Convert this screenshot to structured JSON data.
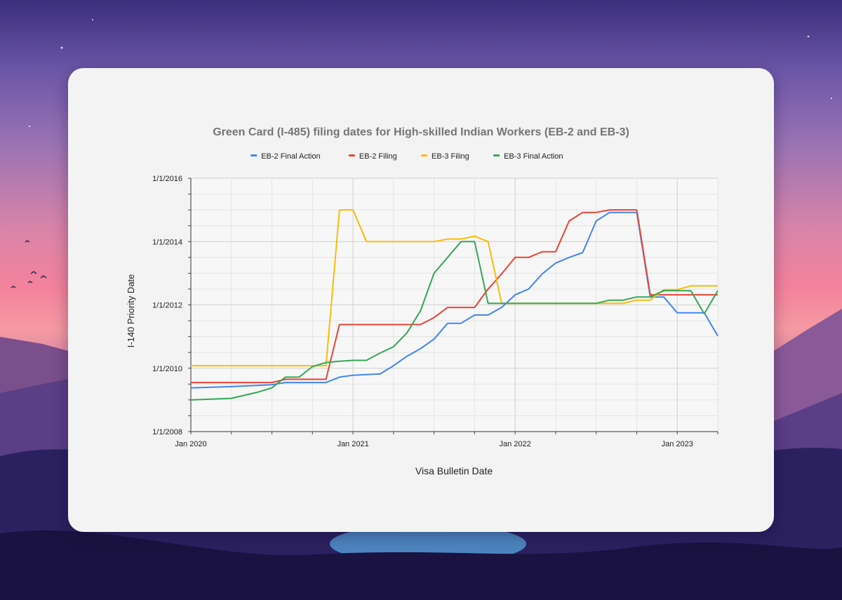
{
  "colors": {
    "eb2_final": "#4285f4",
    "eb2_filing": "#ea4335",
    "eb3_filing": "#fbbc04",
    "eb3_final": "#34a853",
    "card_bg": "#f3f3f3",
    "title_color": "#757575",
    "grid": "#dadada"
  },
  "chart_data": {
    "type": "line",
    "title": "Green Card (I-485) filing dates for High-skilled Indian Workers (EB-2 and EB-3)",
    "xlabel": "Visa Bulletin Date",
    "ylabel": "I-140 Priority Date",
    "x_ticks": [
      "Jan 2020",
      "Jan 2021",
      "Jan 2022",
      "Jan 2023"
    ],
    "y_ticks": [
      "1/1/2008",
      "1/1/2010",
      "1/1/2012",
      "1/1/2014",
      "1/1/2016"
    ],
    "x_range": [
      "2020-01",
      "2023-04"
    ],
    "y_range": [
      2008,
      2016
    ],
    "grid": true,
    "legend_position": "top",
    "series": [
      {
        "name": "EB-2 Final Action",
        "color": "#4285f4",
        "points": [
          [
            "2020-01",
            2009.38
          ],
          [
            "2020-04",
            2009.42
          ],
          [
            "2020-07",
            2009.48
          ],
          [
            "2020-08",
            2009.55
          ],
          [
            "2020-10",
            2009.55
          ],
          [
            "2020-11",
            2009.55
          ],
          [
            "2020-12",
            2009.72
          ],
          [
            "2021-01",
            2009.78
          ],
          [
            "2021-02",
            2009.8
          ],
          [
            "2021-03",
            2009.82
          ],
          [
            "2021-04",
            2010.08
          ],
          [
            "2021-05",
            2010.38
          ],
          [
            "2021-06",
            2010.62
          ],
          [
            "2021-07",
            2010.92
          ],
          [
            "2021-08",
            2011.42
          ],
          [
            "2021-09",
            2011.42
          ],
          [
            "2021-10",
            2011.68
          ],
          [
            "2021-11",
            2011.68
          ],
          [
            "2021-12",
            2011.92
          ],
          [
            "2022-01",
            2012.32
          ],
          [
            "2022-02",
            2012.5
          ],
          [
            "2022-03",
            2012.98
          ],
          [
            "2022-04",
            2013.32
          ],
          [
            "2022-05",
            2013.5
          ],
          [
            "2022-06",
            2013.65
          ],
          [
            "2022-07",
            2014.65
          ],
          [
            "2022-08",
            2014.92
          ],
          [
            "2022-09",
            2014.92
          ],
          [
            "2022-10",
            2014.92
          ],
          [
            "2022-11",
            2012.25
          ],
          [
            "2022-12",
            2012.25
          ],
          [
            "2023-01",
            2011.75
          ],
          [
            "2023-02",
            2011.75
          ],
          [
            "2023-03",
            2011.75
          ],
          [
            "2023-04",
            2011.02
          ]
        ]
      },
      {
        "name": "EB-2 Filing",
        "color": "#ea4335",
        "points": [
          [
            "2020-01",
            2009.55
          ],
          [
            "2020-07",
            2009.55
          ],
          [
            "2020-08",
            2009.65
          ],
          [
            "2020-10",
            2009.65
          ],
          [
            "2020-11",
            2009.65
          ],
          [
            "2020-12",
            2011.38
          ],
          [
            "2021-01",
            2011.38
          ],
          [
            "2021-06",
            2011.38
          ],
          [
            "2021-07",
            2011.6
          ],
          [
            "2021-08",
            2011.92
          ],
          [
            "2021-09",
            2011.92
          ],
          [
            "2021-10",
            2011.92
          ],
          [
            "2021-11",
            2012.5
          ],
          [
            "2021-12",
            2012.98
          ],
          [
            "2022-01",
            2013.5
          ],
          [
            "2022-02",
            2013.5
          ],
          [
            "2022-03",
            2013.68
          ],
          [
            "2022-04",
            2013.68
          ],
          [
            "2022-05",
            2014.65
          ],
          [
            "2022-06",
            2014.92
          ],
          [
            "2022-07",
            2014.92
          ],
          [
            "2022-08",
            2015.0
          ],
          [
            "2022-09",
            2015.0
          ],
          [
            "2022-10",
            2015.0
          ],
          [
            "2022-11",
            2012.32
          ],
          [
            "2022-12",
            2012.32
          ],
          [
            "2023-01",
            2012.32
          ],
          [
            "2023-02",
            2012.32
          ],
          [
            "2023-03",
            2012.32
          ],
          [
            "2023-04",
            2012.32
          ]
        ]
      },
      {
        "name": "EB-3 Filing",
        "color": "#fbbc04",
        "points": [
          [
            "2020-01",
            2010.08
          ],
          [
            "2020-11",
            2010.08
          ],
          [
            "2020-12",
            2015.0
          ],
          [
            "2021-01",
            2015.0
          ],
          [
            "2021-02",
            2014.0
          ],
          [
            "2021-06",
            2014.0
          ],
          [
            "2021-07",
            2014.0
          ],
          [
            "2021-08",
            2014.08
          ],
          [
            "2021-09",
            2014.08
          ],
          [
            "2021-10",
            2014.17
          ],
          [
            "2021-11",
            2014.0
          ],
          [
            "2021-12",
            2012.05
          ],
          [
            "2022-09",
            2012.05
          ],
          [
            "2022-10",
            2012.15
          ],
          [
            "2022-11",
            2012.15
          ],
          [
            "2022-12",
            2012.48
          ],
          [
            "2023-01",
            2012.48
          ],
          [
            "2023-02",
            2012.6
          ],
          [
            "2023-04",
            2012.6
          ]
        ]
      },
      {
        "name": "EB-3 Final Action",
        "color": "#34a853",
        "points": [
          [
            "2020-01",
            2009.0
          ],
          [
            "2020-04",
            2009.05
          ],
          [
            "2020-05",
            2009.15
          ],
          [
            "2020-06",
            2009.25
          ],
          [
            "2020-07",
            2009.38
          ],
          [
            "2020-08",
            2009.72
          ],
          [
            "2020-09",
            2009.72
          ],
          [
            "2020-10",
            2010.05
          ],
          [
            "2020-11",
            2010.18
          ],
          [
            "2020-12",
            2010.22
          ],
          [
            "2021-01",
            2010.25
          ],
          [
            "2021-02",
            2010.25
          ],
          [
            "2021-03",
            2010.48
          ],
          [
            "2021-04",
            2010.68
          ],
          [
            "2021-05",
            2011.12
          ],
          [
            "2021-06",
            2011.82
          ],
          [
            "2021-07",
            2013.0
          ],
          [
            "2021-08",
            2013.5
          ],
          [
            "2021-09",
            2014.0
          ],
          [
            "2021-10",
            2014.0
          ],
          [
            "2021-11",
            2012.05
          ],
          [
            "2022-07",
            2012.05
          ],
          [
            "2022-08",
            2012.15
          ],
          [
            "2022-09",
            2012.15
          ],
          [
            "2022-10",
            2012.25
          ],
          [
            "2022-11",
            2012.25
          ],
          [
            "2022-12",
            2012.45
          ],
          [
            "2023-01",
            2012.45
          ],
          [
            "2023-02",
            2012.45
          ],
          [
            "2023-03",
            2011.72
          ],
          [
            "2023-04",
            2012.45
          ]
        ]
      }
    ]
  }
}
